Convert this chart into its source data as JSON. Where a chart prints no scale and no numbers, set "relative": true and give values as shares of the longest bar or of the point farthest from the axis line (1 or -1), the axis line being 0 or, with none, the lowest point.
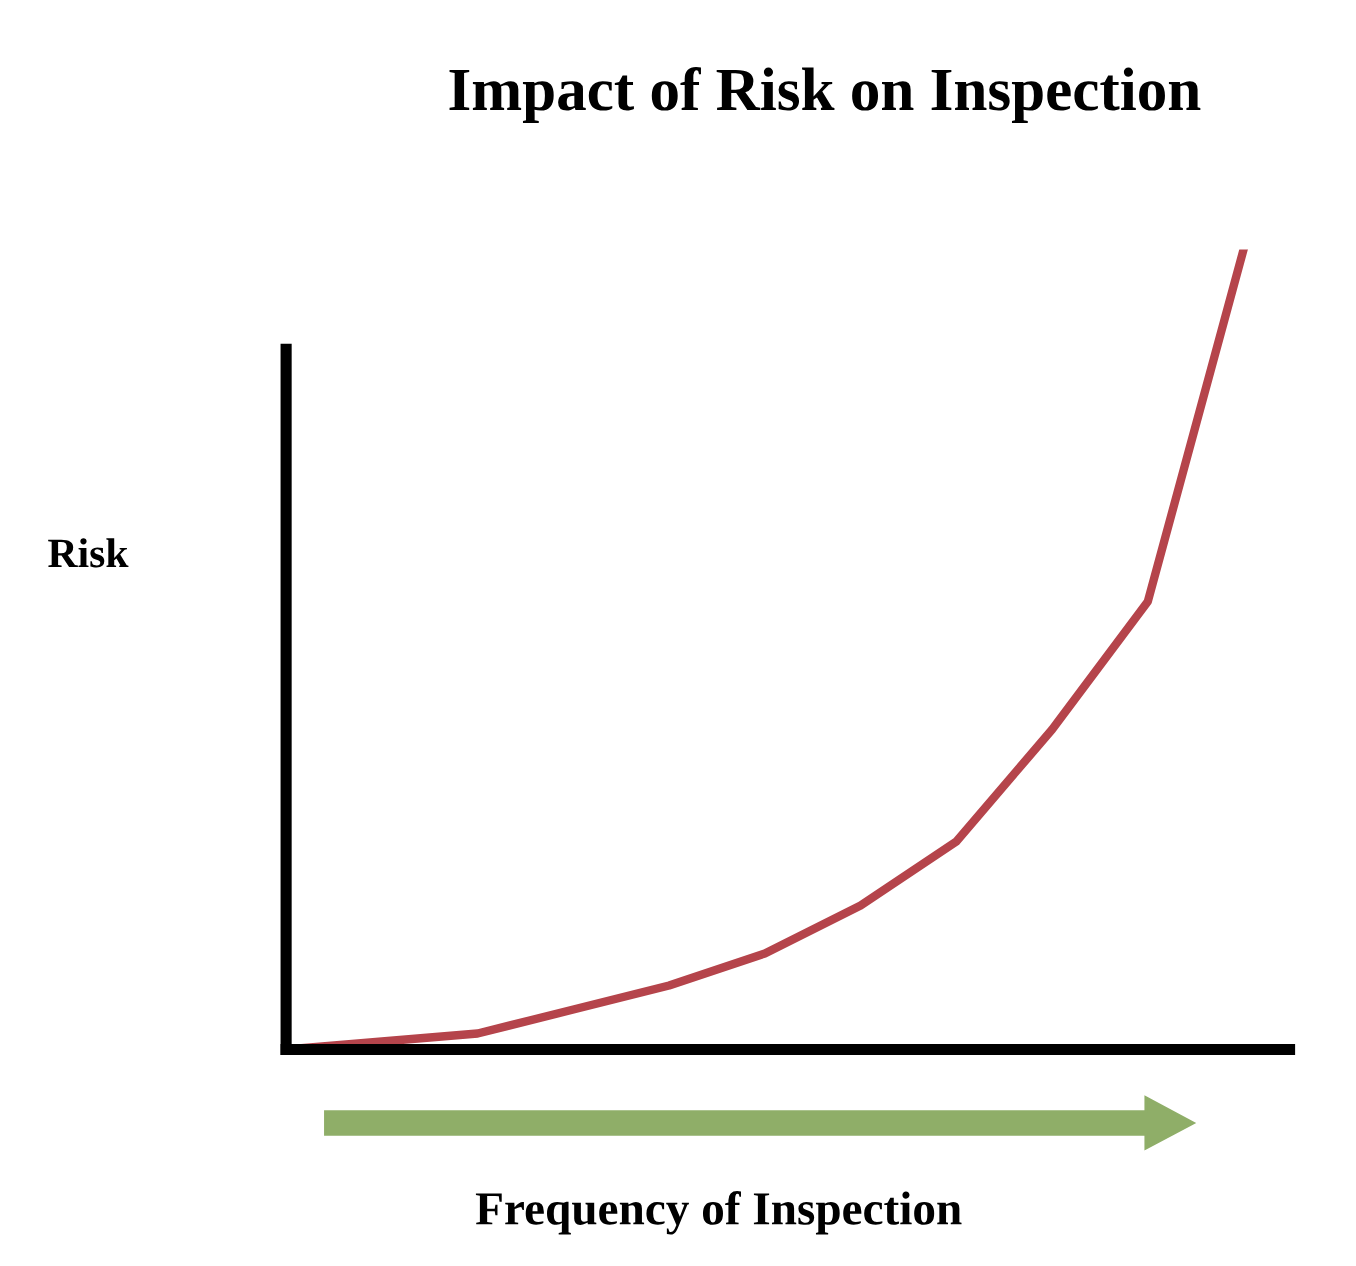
{
  "chart_data": {
    "type": "line",
    "title": "Impact of Risk on Inspection",
    "xlabel": "Frequency of Inspection",
    "ylabel": "Risk",
    "relative": true,
    "categories": [
      null,
      null,
      null,
      null,
      null,
      null,
      null,
      null,
      null,
      null,
      null
    ],
    "series": [
      {
        "color": "#b5444b",
        "values": [
          0,
          0.01,
          0.02,
          0.05,
          0.08,
          0.12,
          0.18,
          0.26,
          0.4,
          0.56,
          1.0
        ]
      }
    ],
    "grid": false,
    "legend": false
  }
}
